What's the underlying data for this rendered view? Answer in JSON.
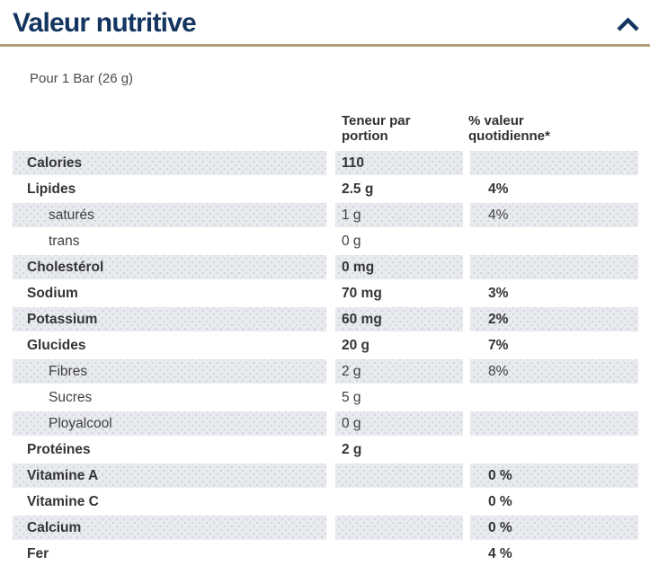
{
  "header": {
    "title": "Valeur nutritive",
    "collapse_icon": "chevron-up-icon"
  },
  "serving_text": "Pour 1 Bar (26 g)",
  "table": {
    "col_amount_header": "Teneur par portion",
    "col_dv_header": "% valeur quotidienne*",
    "rows": [
      {
        "label": "Calories",
        "amount": "110",
        "dv": "",
        "shaded": true,
        "bold": true,
        "indent": false
      },
      {
        "label": "Lipides",
        "amount": "2.5 g",
        "dv": "4%",
        "shaded": false,
        "bold": true,
        "indent": false
      },
      {
        "label": "saturés",
        "amount": "1 g",
        "dv": "4%",
        "shaded": true,
        "bold": false,
        "indent": true
      },
      {
        "label": "trans",
        "amount": "0 g",
        "dv": "",
        "shaded": false,
        "bold": false,
        "indent": true
      },
      {
        "label": "Cholestérol",
        "amount": "0 mg",
        "dv": "",
        "shaded": true,
        "bold": true,
        "indent": false
      },
      {
        "label": "Sodium",
        "amount": "70 mg",
        "dv": "3%",
        "shaded": false,
        "bold": true,
        "indent": false
      },
      {
        "label": "Potassium",
        "amount": "60 mg",
        "dv": "2%",
        "shaded": true,
        "bold": true,
        "indent": false
      },
      {
        "label": "Glucides",
        "amount": "20 g",
        "dv": "7%",
        "shaded": false,
        "bold": true,
        "indent": false
      },
      {
        "label": "Fibres",
        "amount": "2 g",
        "dv": "8%",
        "shaded": true,
        "bold": false,
        "indent": true
      },
      {
        "label": "Sucres",
        "amount": "5 g",
        "dv": "",
        "shaded": false,
        "bold": false,
        "indent": true
      },
      {
        "label": "Ployalcool",
        "amount": "0 g",
        "dv": "",
        "shaded": true,
        "bold": false,
        "indent": true
      },
      {
        "label": "Protéines",
        "amount": "2 g",
        "dv": "",
        "shaded": false,
        "bold": true,
        "indent": false
      },
      {
        "label": "Vitamine A",
        "amount": "",
        "dv": "0 %",
        "shaded": true,
        "bold": true,
        "indent": false
      },
      {
        "label": "Vitamine C",
        "amount": "",
        "dv": "0 %",
        "shaded": false,
        "bold": true,
        "indent": false
      },
      {
        "label": "Calcium",
        "amount": "",
        "dv": "0 %",
        "shaded": true,
        "bold": true,
        "indent": false
      },
      {
        "label": "Fer",
        "amount": "",
        "dv": "4 %",
        "shaded": false,
        "bold": true,
        "indent": false
      }
    ]
  },
  "colors": {
    "navy": "#14355f",
    "gold_divider": "#b49f79",
    "shaded_row": "#e9eaee",
    "text": "#3e3f42"
  }
}
